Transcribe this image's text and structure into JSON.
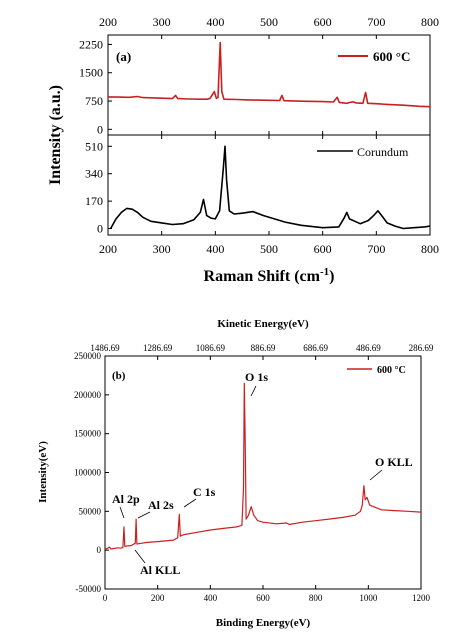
{
  "chart_data": [
    {
      "type": "line",
      "panel": "(a)",
      "xlabel": "Raman Shift (cm",
      "xlabel_sup": "-1",
      "xlabel_end": ")",
      "ylabel": "Intensity (a.u.)",
      "xlim": [
        200,
        800
      ],
      "xticks": [
        200,
        300,
        400,
        500,
        600,
        700,
        800
      ],
      "subplots": [
        {
          "ylim": [
            -150,
            2500
          ],
          "yticks": [
            0,
            750,
            1500,
            2250
          ],
          "legend": "top-right",
          "series": [
            {
              "name": "600 °C",
              "color": "#cc2020",
              "points": [
                [
                  200,
                  860
                ],
                [
                  220,
                  855
                ],
                [
                  240,
                  848
                ],
                [
                  255,
                  870
                ],
                [
                  265,
                  840
                ],
                [
                  280,
                  835
                ],
                [
                  300,
                  825
                ],
                [
                  320,
                  815
                ],
                [
                  326,
                  900
                ],
                [
                  330,
                  815
                ],
                [
                  350,
                  805
                ],
                [
                  370,
                  800
                ],
                [
                  385,
                  800
                ],
                [
                  390,
                  820
                ],
                [
                  398,
                  1000
                ],
                [
                  402,
                  820
                ],
                [
                  405,
                  850
                ],
                [
                  409,
                  2300
                ],
                [
                  412,
                  1000
                ],
                [
                  416,
                  800
                ],
                [
                  440,
                  790
                ],
                [
                  460,
                  780
                ],
                [
                  480,
                  775
                ],
                [
                  500,
                  770
                ],
                [
                  520,
                  765
                ],
                [
                  524,
                  900
                ],
                [
                  528,
                  760
                ],
                [
                  560,
                  745
                ],
                [
                  600,
                  735
                ],
                [
                  620,
                  725
                ],
                [
                  627,
                  850
                ],
                [
                  631,
                  715
                ],
                [
                  645,
                  690
                ],
                [
                  650,
                  710
                ],
                [
                  657,
                  730
                ],
                [
                  662,
                  700
                ],
                [
                  675,
                  690
                ],
                [
                  680,
                  980
                ],
                [
                  684,
                  690
                ],
                [
                  700,
                  680
                ],
                [
                  720,
                  660
                ],
                [
                  750,
                  640
                ],
                [
                  780,
                  610
                ],
                [
                  800,
                  600
                ]
              ]
            }
          ]
        },
        {
          "ylim": [
            -40,
            580
          ],
          "yticks": [
            0,
            170,
            340,
            510
          ],
          "legend": "top-right",
          "series": [
            {
              "name": "Corundum",
              "color": "#000000",
              "points": [
                [
                  205,
                  0
                ],
                [
                  215,
                  60
                ],
                [
                  225,
                  100
                ],
                [
                  235,
                  125
                ],
                [
                  245,
                  120
                ],
                [
                  255,
                  100
                ],
                [
                  265,
                  70
                ],
                [
                  280,
                  45
                ],
                [
                  300,
                  35
                ],
                [
                  320,
                  25
                ],
                [
                  340,
                  30
                ],
                [
                  360,
                  55
                ],
                [
                  372,
                  100
                ],
                [
                  378,
                  180
                ],
                [
                  384,
                  80
                ],
                [
                  392,
                  65
                ],
                [
                  400,
                  60
                ],
                [
                  408,
                  110
                ],
                [
                  415,
                  380
                ],
                [
                  418,
                  510
                ],
                [
                  421,
                  300
                ],
                [
                  426,
                  110
                ],
                [
                  435,
                  90
                ],
                [
                  450,
                  95
                ],
                [
                  470,
                  105
                ],
                [
                  490,
                  80
                ],
                [
                  510,
                  60
                ],
                [
                  530,
                  40
                ],
                [
                  560,
                  20
                ],
                [
                  600,
                  5
                ],
                [
                  630,
                  10
                ],
                [
                  640,
                  65
                ],
                [
                  645,
                  100
                ],
                [
                  650,
                  60
                ],
                [
                  660,
                  45
                ],
                [
                  670,
                  30
                ],
                [
                  685,
                  50
                ],
                [
                  695,
                  80
                ],
                [
                  703,
                  110
                ],
                [
                  710,
                  80
                ],
                [
                  720,
                  35
                ],
                [
                  735,
                  15
                ],
                [
                  750,
                  0
                ],
                [
                  770,
                  5
                ],
                [
                  790,
                  10
                ],
                [
                  800,
                  15
                ]
              ]
            }
          ]
        }
      ]
    },
    {
      "type": "line",
      "panel": "(b)",
      "xlabel": "Binding Energy(eV)",
      "x2label": "Kinetic Energy(eV)",
      "ylabel": "Intensity(eV)",
      "xlim": [
        0,
        1200
      ],
      "ylim": [
        -50000,
        250000
      ],
      "xticks": [
        0,
        200,
        400,
        600,
        800,
        1000,
        1200
      ],
      "x2ticks": [
        "1486.69",
        "1286.69",
        "1086.69",
        "886.69",
        "686.69",
        "486.69",
        "286.69"
      ],
      "yticks": [
        -50000,
        0,
        50000,
        100000,
        150000,
        200000,
        250000
      ],
      "legend": "top-right",
      "series": [
        {
          "name": "600 °C",
          "color": "#cc2020",
          "points": [
            [
              0,
              1000
            ],
            [
              10,
              2500
            ],
            [
              18,
              4000
            ],
            [
              22,
              1500
            ],
            [
              30,
              2000
            ],
            [
              50,
              3000
            ],
            [
              60,
              2500
            ],
            [
              68,
              3500
            ],
            [
              72,
              30000
            ],
            [
              75,
              5000
            ],
            [
              100,
              6000
            ],
            [
              115,
              9000
            ],
            [
              118,
              40000
            ],
            [
              121,
              8000
            ],
            [
              140,
              9000
            ],
            [
              160,
              10000
            ],
            [
              200,
              11000
            ],
            [
              260,
              13000
            ],
            [
              276,
              16000
            ],
            [
              282,
              46000
            ],
            [
              286,
              18000
            ],
            [
              300,
              20000
            ],
            [
              350,
              23000
            ],
            [
              400,
              26000
            ],
            [
              450,
              28000
            ],
            [
              500,
              30000
            ],
            [
              520,
              32000
            ],
            [
              526,
              80000
            ],
            [
              529,
              215000
            ],
            [
              532,
              150000
            ],
            [
              536,
              40000
            ],
            [
              545,
              45000
            ],
            [
              555,
              56000
            ],
            [
              565,
              45000
            ],
            [
              580,
              38000
            ],
            [
              600,
              36000
            ],
            [
              650,
              34000
            ],
            [
              690,
              35000
            ],
            [
              700,
              33000
            ],
            [
              750,
              36000
            ],
            [
              800,
              38000
            ],
            [
              850,
              40000
            ],
            [
              900,
              42000
            ],
            [
              950,
              45000
            ],
            [
              970,
              50000
            ],
            [
              977,
              58000
            ],
            [
              983,
              83000
            ],
            [
              988,
              65000
            ],
            [
              995,
              68000
            ],
            [
              1005,
              58000
            ],
            [
              1020,
              56000
            ],
            [
              1050,
              52000
            ],
            [
              1100,
              51000
            ],
            [
              1150,
              50000
            ],
            [
              1200,
              49000
            ]
          ]
        }
      ],
      "annotations": [
        {
          "text": "O 1s",
          "x": 529
        },
        {
          "text": "O KLL",
          "x": 983
        },
        {
          "text": "C 1s",
          "x": 282
        },
        {
          "text": "Al 2s",
          "x": 118
        },
        {
          "text": "Al 2p",
          "x": 72
        },
        {
          "text": "Al KLL",
          "x": 100
        }
      ]
    }
  ]
}
